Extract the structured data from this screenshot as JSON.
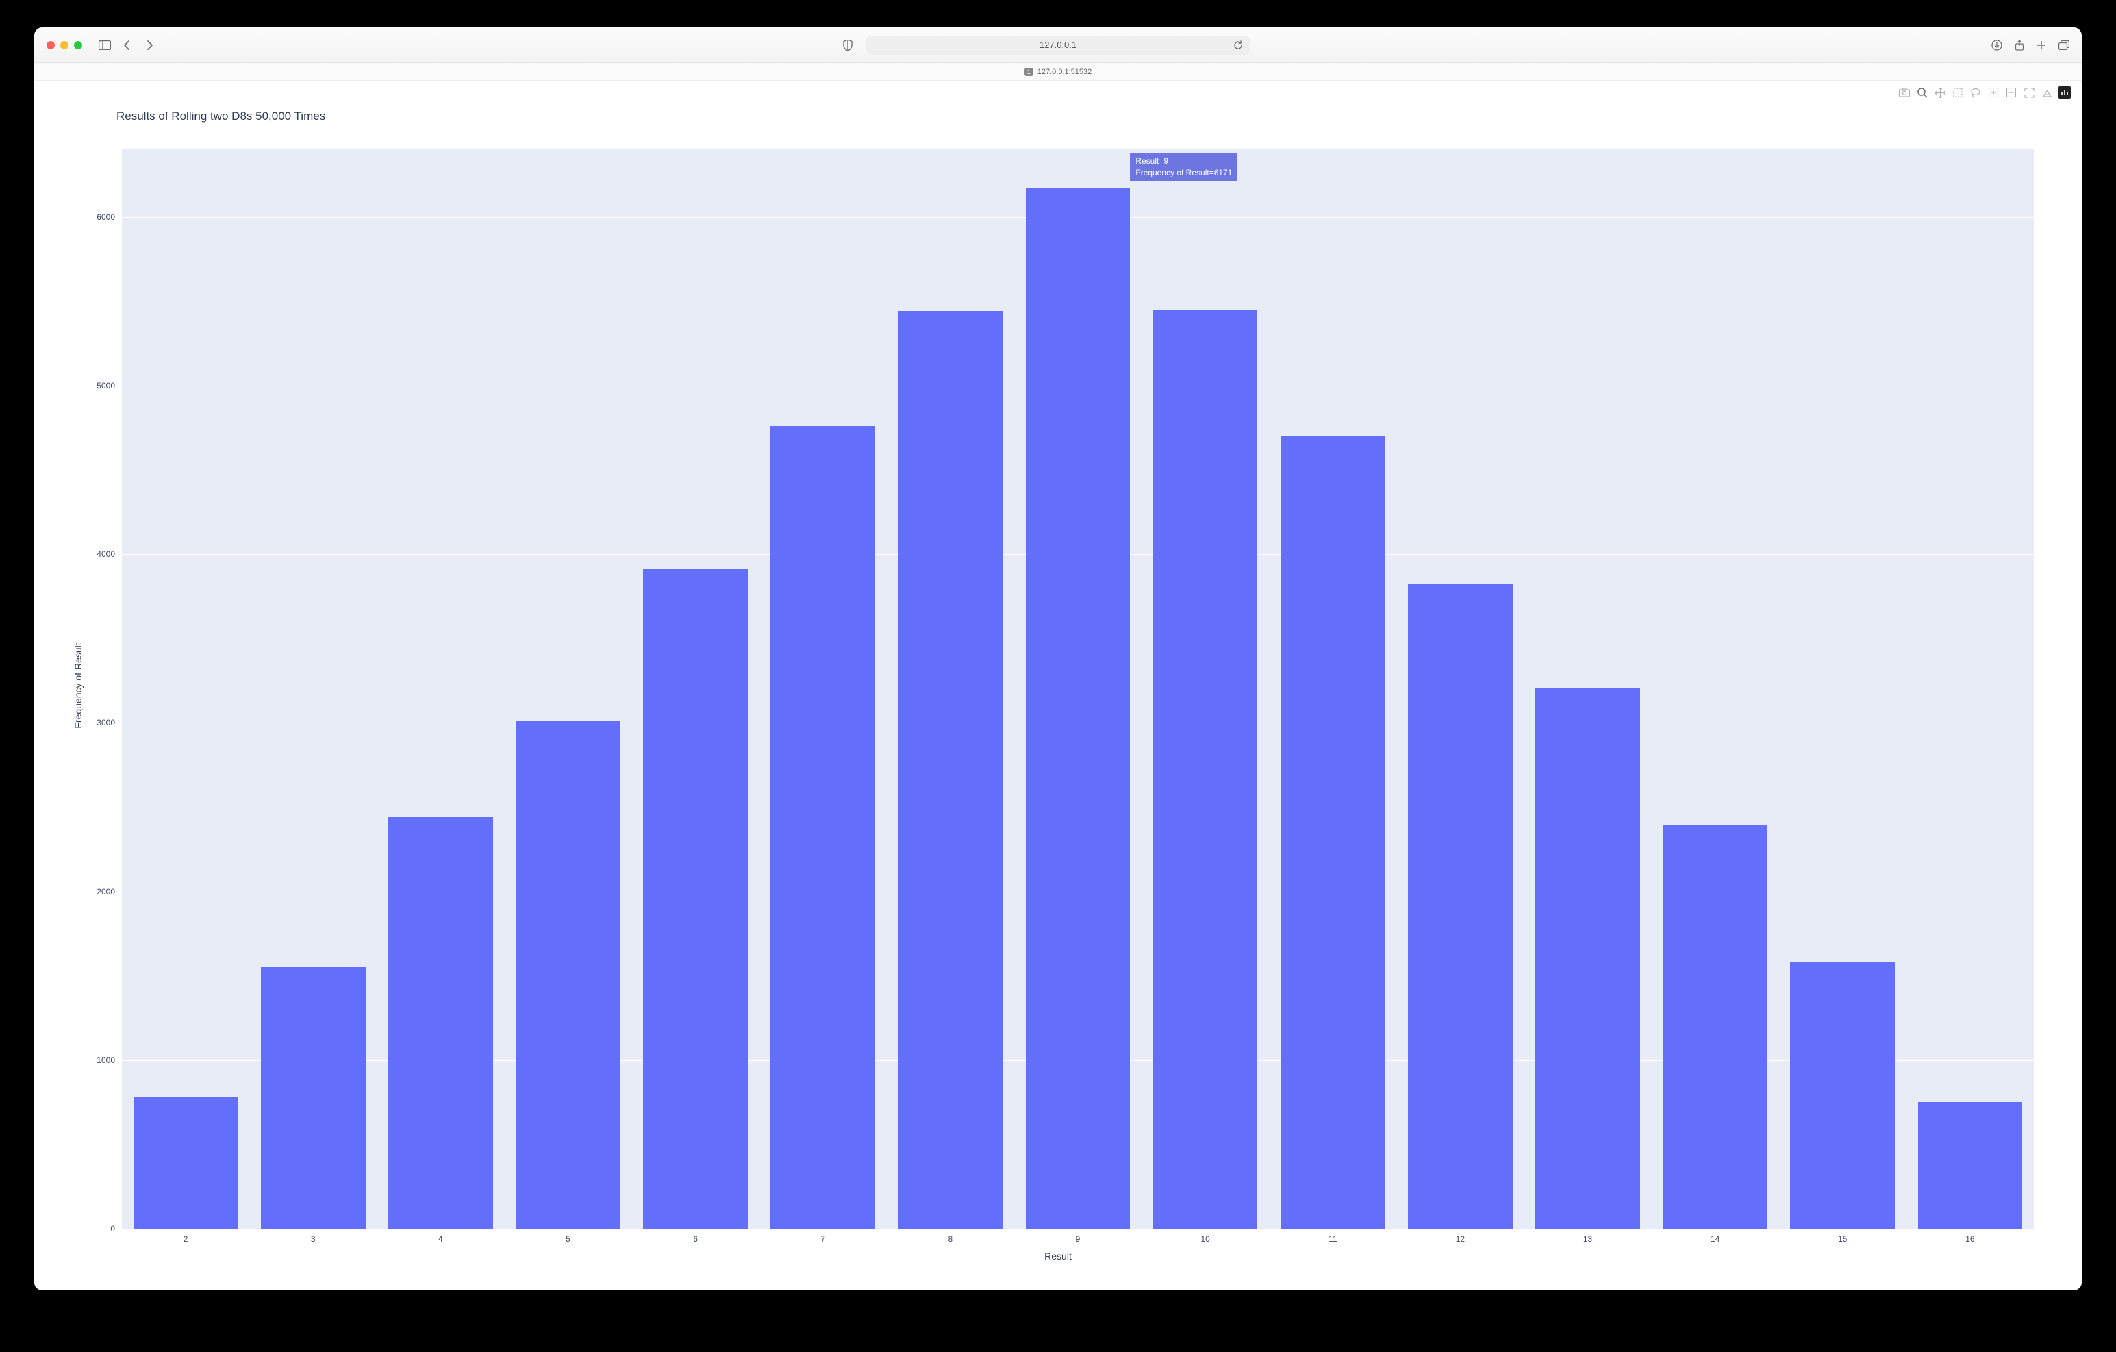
{
  "browser": {
    "address": "127.0.0.1",
    "tab_label": "127.0.0.1:51532",
    "tab_badge": "1"
  },
  "chart": {
    "type": "bar",
    "title": "Results of Rolling two D8s 50,000 Times",
    "xaxis_title": "Result",
    "yaxis_title": "Frequency of Result",
    "background_color": "#e7ecf6",
    "grid_color": "#ffffff",
    "bar_color": "#636efa",
    "title_color": "#2f3b52",
    "axis_label_color": "#2f3b52",
    "tick_color": "#3b4a63",
    "title_fontsize": 17,
    "axis_title_fontsize": 14,
    "tick_fontsize": 12,
    "bar_gap_ratio": 0.18,
    "categories": [
      2,
      3,
      4,
      5,
      6,
      7,
      8,
      9,
      10,
      11,
      12,
      13,
      14,
      15,
      16
    ],
    "values": [
      780,
      1550,
      2440,
      3010,
      3910,
      4760,
      5440,
      6171,
      5450,
      4700,
      3820,
      3210,
      2390,
      1580,
      750
    ],
    "ylim": [
      0,
      6400
    ],
    "yticks": [
      0,
      1000,
      2000,
      3000,
      4000,
      5000,
      6000
    ],
    "tooltip": {
      "category": 9,
      "line1": "Result=9",
      "line2": "Frequency of Result=6171",
      "bg": "#6d76e0"
    }
  },
  "modebar_icons": [
    "camera",
    "zoom",
    "pan",
    "box-select",
    "lasso",
    "zoom-in",
    "zoom-out",
    "autoscale",
    "reset",
    "logo"
  ]
}
